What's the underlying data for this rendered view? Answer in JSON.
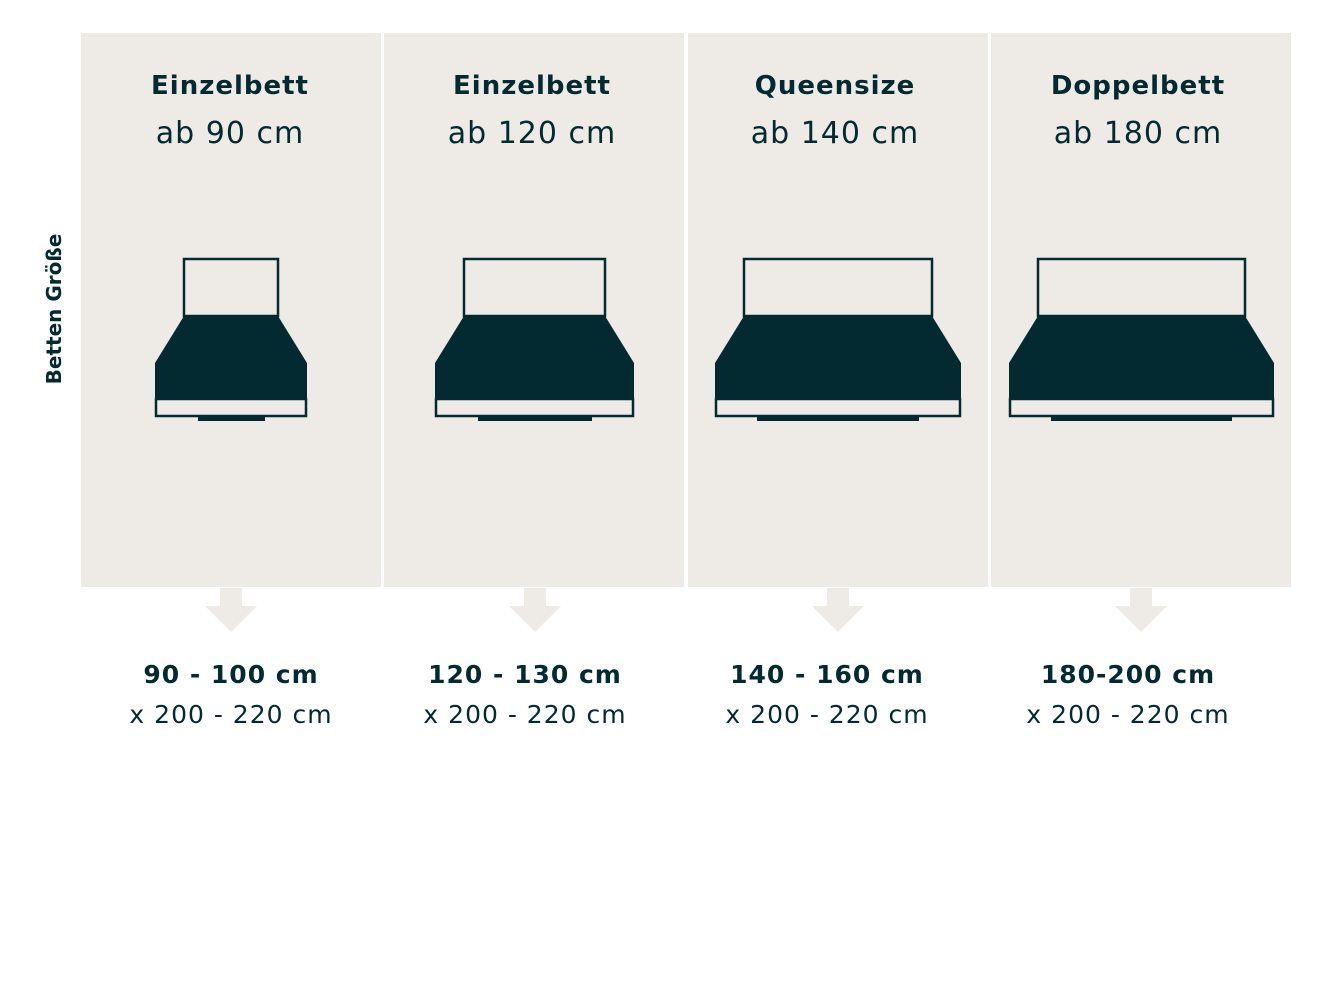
{
  "side_label": "Betten Größe",
  "colors": {
    "panel": "#eeebe6",
    "dark": "#022a30",
    "arrow": "#eeebe6",
    "background": "#ffffff"
  },
  "beds": [
    {
      "title": "Einzelbett",
      "subtitle": "ab 90 cm",
      "dim_width": "90 - 100 cm",
      "dim_length": "x 200 - 220 cm"
    },
    {
      "title": "Einzelbett",
      "subtitle": "ab 120 cm",
      "dim_width": "120 - 130 cm",
      "dim_length": "x 200 - 220 cm"
    },
    {
      "title": "Queensize",
      "subtitle": "ab 140 cm",
      "dim_width": "140 - 160 cm",
      "dim_length": "x 200 - 220 cm"
    },
    {
      "title": "Doppelbett",
      "subtitle": "ab 180 cm",
      "dim_width": "180-200 cm",
      "dim_length": "x 200 - 220 cm"
    }
  ]
}
